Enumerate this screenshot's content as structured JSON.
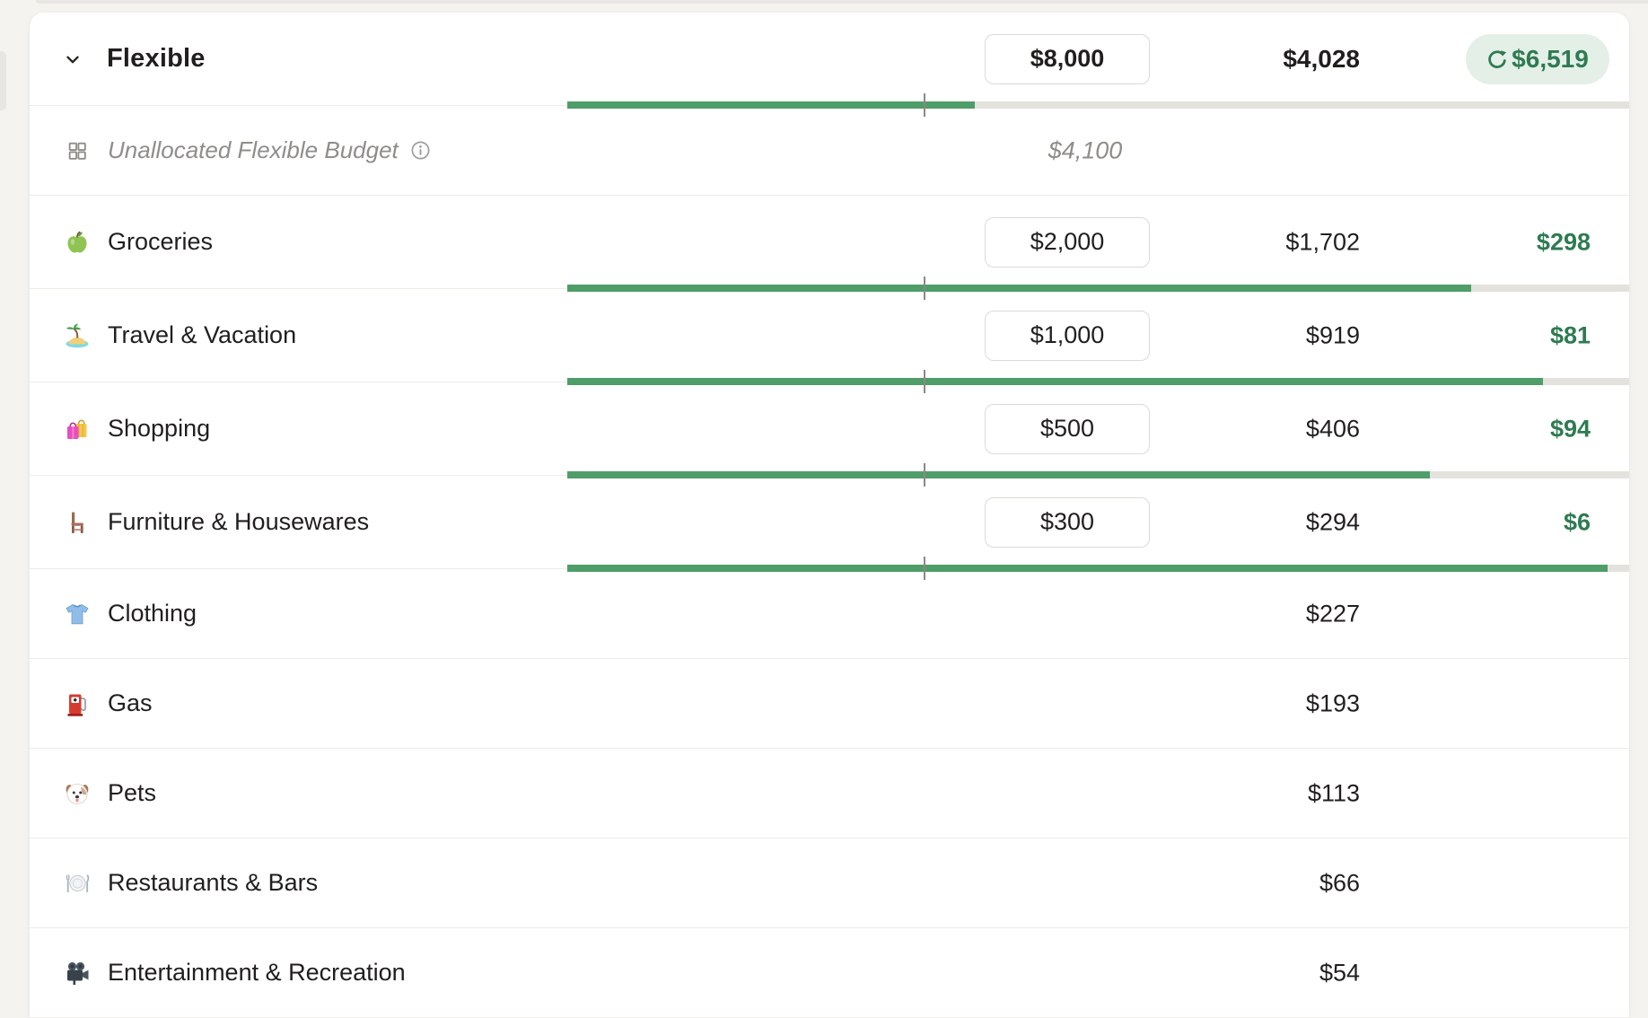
{
  "colors": {
    "accent_green_text": "#2e7b51",
    "bar_green": "#4f9d68",
    "bar_track": "#e3e2dd",
    "pill_background": "#e4efe7",
    "muted_text": "#8e8d89"
  },
  "group_header": {
    "collapse_icon": "chevron-down-icon",
    "title": "Flexible",
    "budget": "$8,000",
    "actual": "$4,028",
    "remaining": "$6,519",
    "remaining_icon": "rollover-icon",
    "bar": {
      "fill_pct": 38.4,
      "tick_pct": 33.6
    }
  },
  "unallocated_row": {
    "icon": "grid-icon",
    "label": "Unallocated Flexible Budget",
    "info_icon": "info-icon",
    "budget": "$4,100"
  },
  "rows": [
    {
      "icon": "apple-icon",
      "label": "Groceries",
      "budget": "$2,000",
      "actual": "$1,702",
      "remaining": "$298",
      "bar": {
        "fill_pct": 85.1,
        "tick_pct": 33.6
      }
    },
    {
      "icon": "island-icon",
      "label": "Travel & Vacation",
      "budget": "$1,000",
      "actual": "$919",
      "remaining": "$81",
      "bar": {
        "fill_pct": 91.9,
        "tick_pct": 33.6
      }
    },
    {
      "icon": "shopping-bags-icon",
      "label": "Shopping",
      "budget": "$500",
      "actual": "$406",
      "remaining": "$94",
      "bar": {
        "fill_pct": 81.2,
        "tick_pct": 33.6
      }
    },
    {
      "icon": "chair-icon",
      "label": "Furniture & Housewares",
      "budget": "$300",
      "actual": "$294",
      "remaining": "$6",
      "bar": {
        "fill_pct": 98.0,
        "tick_pct": 33.6
      }
    },
    {
      "icon": "tshirt-icon",
      "label": "Clothing",
      "actual": "$227"
    },
    {
      "icon": "fuel-pump-icon",
      "label": "Gas",
      "actual": "$193"
    },
    {
      "icon": "dog-icon",
      "label": "Pets",
      "actual": "$113"
    },
    {
      "icon": "plate-cutlery-icon",
      "label": "Restaurants & Bars",
      "actual": "$66"
    },
    {
      "icon": "movie-camera-icon",
      "label": "Entertainment & Recreation",
      "actual": "$54"
    }
  ]
}
